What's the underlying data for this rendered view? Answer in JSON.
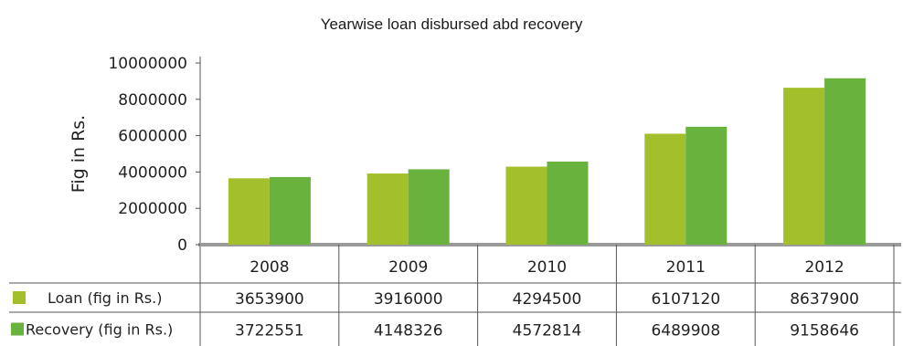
{
  "chart_data": {
    "type": "bar",
    "title": "Yearwise loan disbursed abd recovery",
    "ylabel": "Fig in Rs.",
    "xlabel": "",
    "ylim": [
      0,
      10000000
    ],
    "yticks": [
      "0",
      "2000000",
      "4000000",
      "6000000",
      "8000000",
      "10000000"
    ],
    "ytick_values": [
      0,
      2000000,
      4000000,
      6000000,
      8000000,
      10000000
    ],
    "grid": false,
    "legend": "bottom-table",
    "categories": [
      "2008",
      "2009",
      "2010",
      "2011",
      "2012"
    ],
    "series": [
      {
        "name": "Loan (fig in Rs.)",
        "color": "#a3bf2b",
        "values": [
          3653900,
          3916000,
          4294500,
          6107120,
          8637900
        ],
        "labels": [
          "3653900",
          "3916000",
          "4294500",
          "6107120",
          "8637900"
        ]
      },
      {
        "name": "Recovery (fig in Rs.)",
        "color": "#6ab23e",
        "values": [
          3722551,
          4148326,
          4572814,
          6489908,
          9158646
        ],
        "labels": [
          "3722551",
          "4148326",
          "4572814",
          "6489908",
          "9158646"
        ]
      }
    ]
  }
}
